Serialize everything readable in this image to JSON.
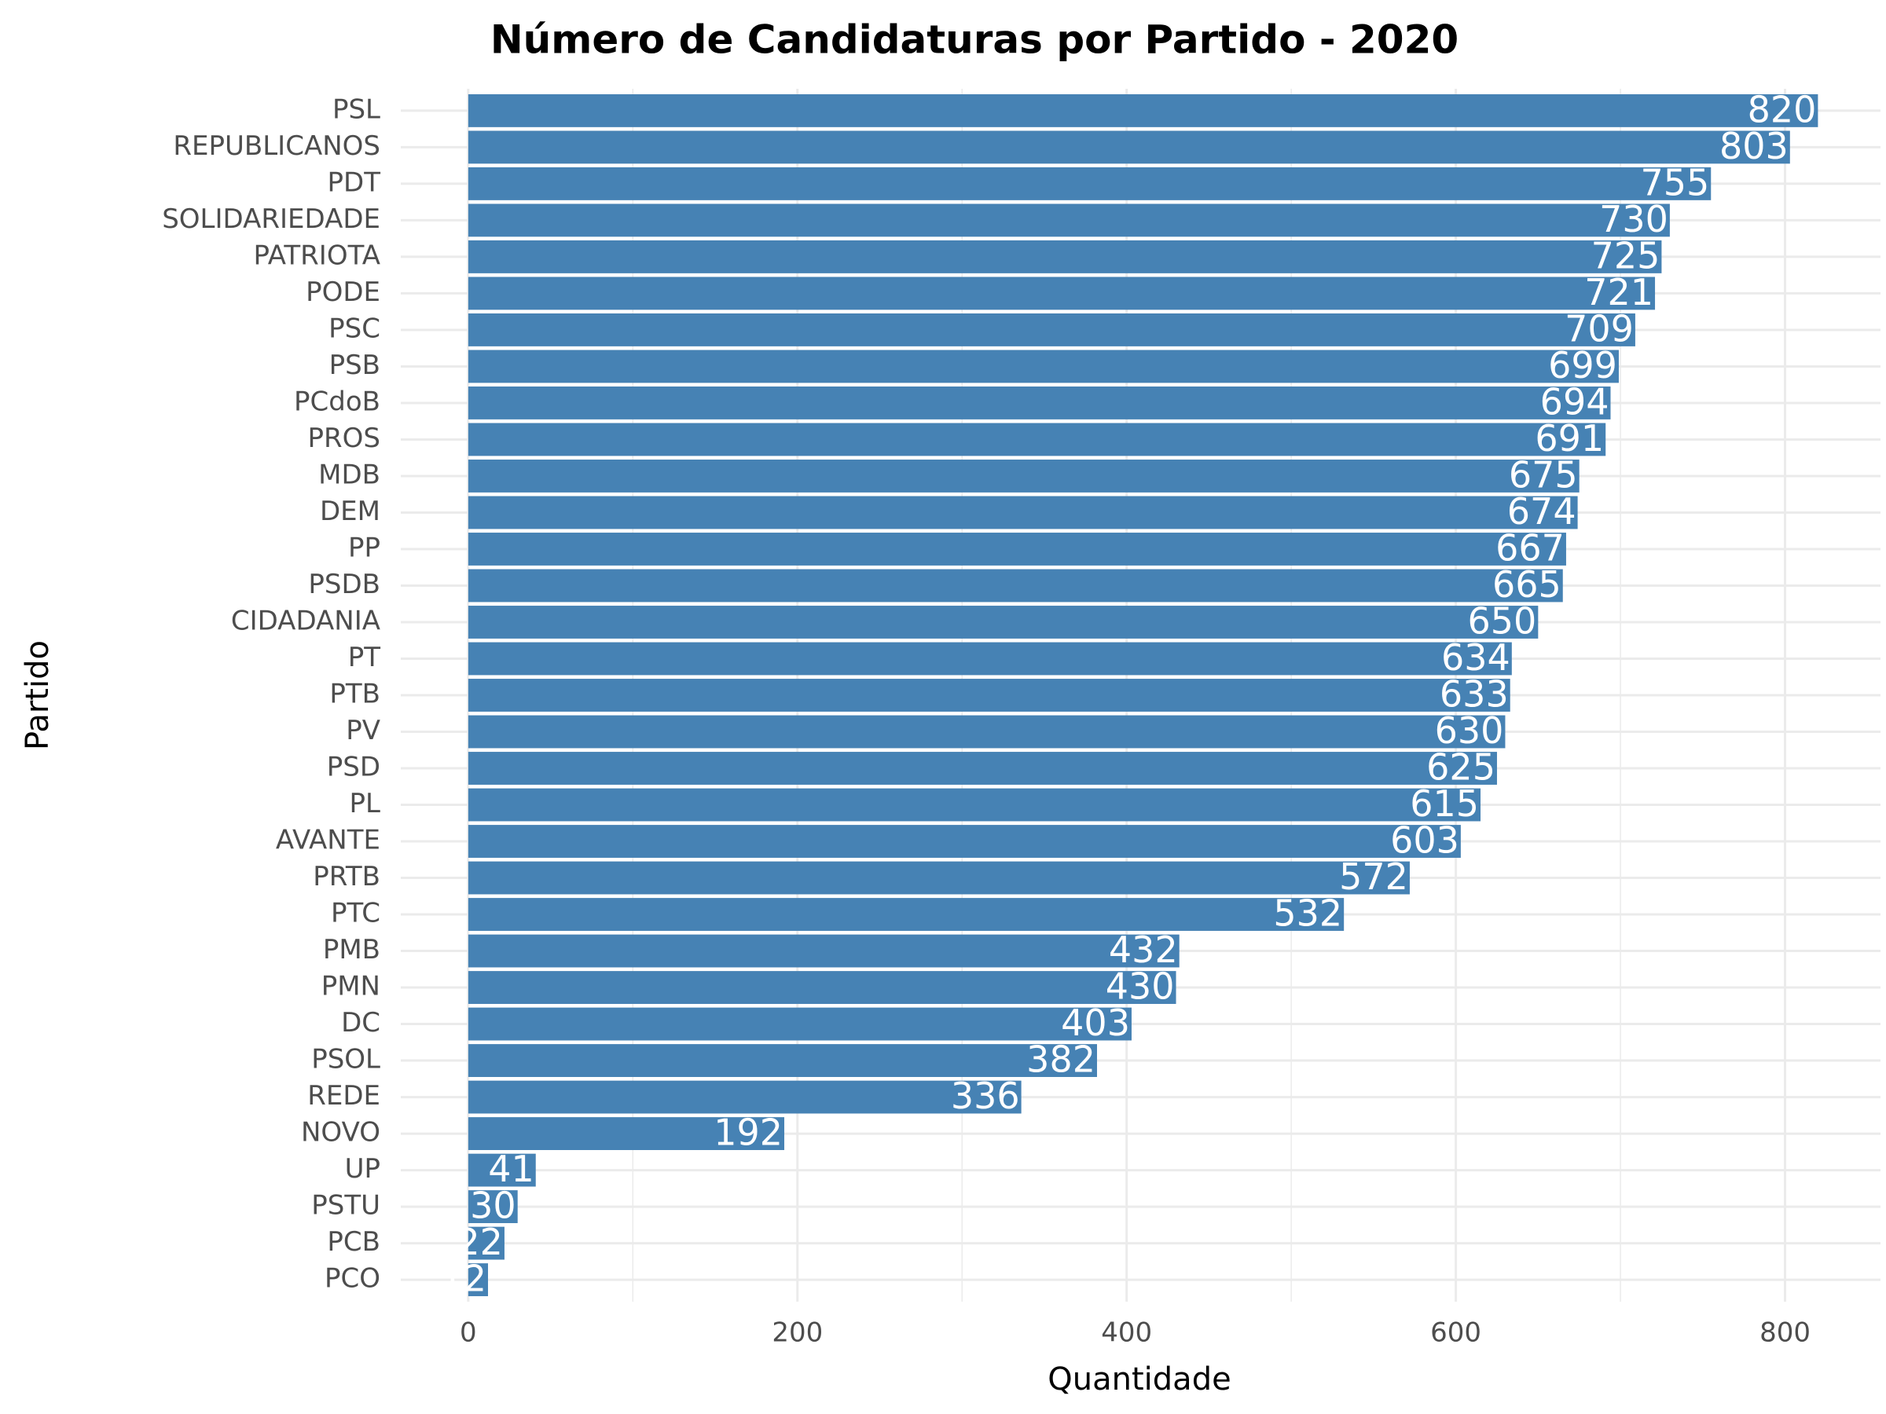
{
  "chart_data": {
    "type": "hbar",
    "title": "Número de Candidaturas por Partido - 2020",
    "x_label": "Quantidade",
    "y_label": "Partido",
    "categories": [
      "PSL",
      "REPUBLICANOS",
      "PDT",
      "SOLIDARIEDADE",
      "PATRIOTA",
      "PODE",
      "PSC",
      "PSB",
      "PCdoB",
      "PROS",
      "MDB",
      "DEM",
      "PP",
      "PSDB",
      "CIDADANIA",
      "PT",
      "PTB",
      "PV",
      "PSD",
      "PL",
      "AVANTE",
      "PRTB",
      "PTC",
      "PMB",
      "PMN",
      "DC",
      "PSOL",
      "REDE",
      "NOVO",
      "UP",
      "PSTU",
      "PCB",
      "PCO"
    ],
    "values": [
      820,
      803,
      755,
      730,
      725,
      721,
      709,
      699,
      694,
      691,
      675,
      674,
      667,
      665,
      650,
      634,
      633,
      630,
      625,
      615,
      603,
      572,
      532,
      432,
      430,
      403,
      382,
      336,
      192,
      41,
      30,
      22,
      12
    ],
    "color": "#4682b4",
    "label_color": "#ffffff",
    "xlim": [
      -41,
      858
    ],
    "xticks": [
      0,
      200,
      400,
      600,
      800
    ],
    "x_minor_grid": [
      100,
      300,
      500,
      700
    ],
    "grid": true
  }
}
